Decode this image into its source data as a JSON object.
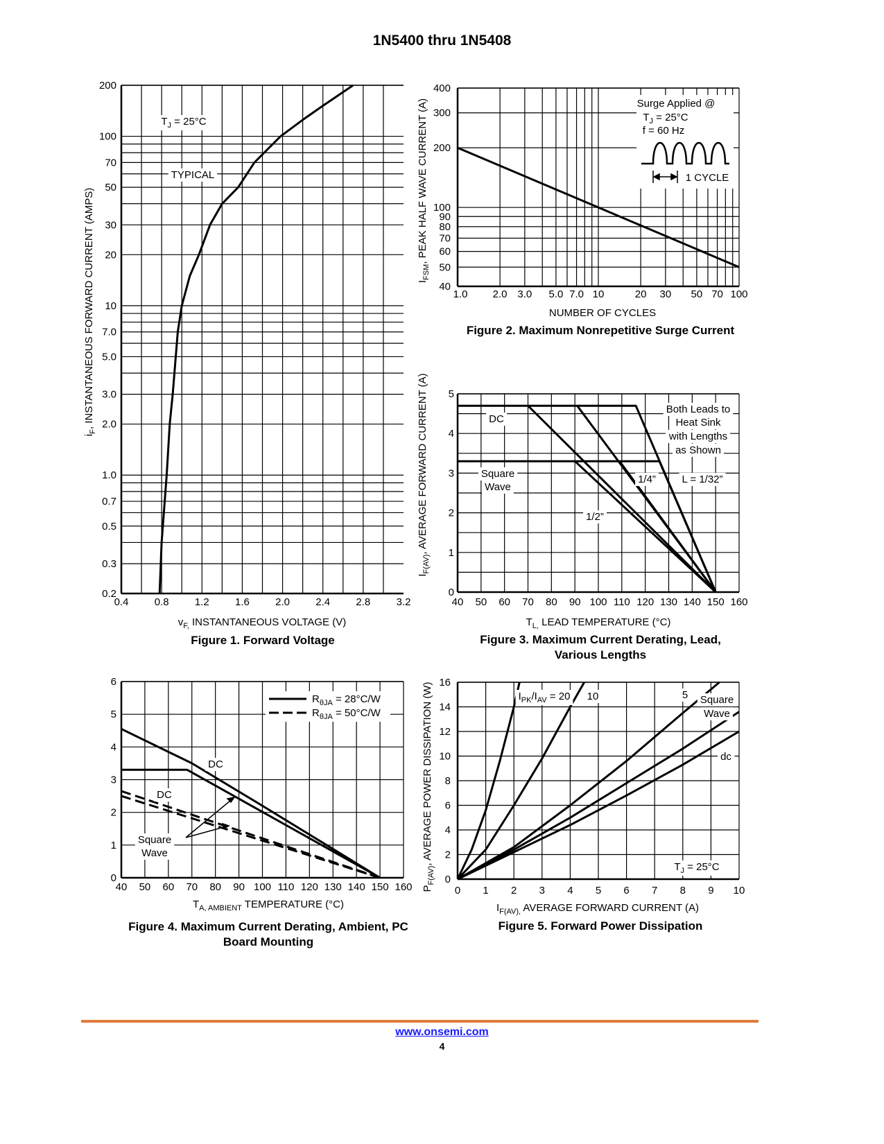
{
  "header": {
    "title": "1N5400 thru 1N5408"
  },
  "footer": {
    "link": "www.onsemi.com",
    "page": "4",
    "rule_color": "#e07b39",
    "link_color": "#1a1aff"
  },
  "chart_data": [
    {
      "id": "fig1",
      "type": "line",
      "title": "Figure 1. Forward Voltage",
      "xscale": "linear",
      "yscale": "log",
      "xlim": [
        0.4,
        3.2
      ],
      "ylim": [
        0.2,
        200
      ],
      "xticks": [
        "0.4",
        "0.8",
        "1.2",
        "1.6",
        "2.0",
        "2.4",
        "2.8",
        "3.2"
      ],
      "yticks": [
        "0.2",
        "0.3",
        "0.5",
        "0.7",
        "1.0",
        "2.0",
        "3.0",
        "5.0",
        "7.0",
        "10",
        "20",
        "30",
        "50",
        "70",
        "100",
        "200"
      ],
      "xgrid": [
        0.6,
        0.8,
        1.0,
        1.2,
        1.4,
        1.6,
        1.8,
        2.0,
        2.2,
        2.4,
        2.6,
        2.8,
        3.0
      ],
      "grid": true,
      "xlabel": [
        [
          "v",
          ""
        ],
        [
          "F,",
          "sub"
        ],
        [
          " INSTANTANEOUS VOLTAGE (V)",
          ""
        ]
      ],
      "ylabel": [
        [
          "i",
          ""
        ],
        [
          "F",
          ",",
          "sub"
        ],
        [
          ", INSTANTANEOUS FORWARD CURRENT (AMPS)",
          ""
        ]
      ],
      "annotations": [
        [
          [
            "T",
            ""
          ],
          [
            "J",
            "sub"
          ],
          [
            " = 25°C",
            ""
          ]
        ],
        [
          [
            "TYPICAL",
            ""
          ]
        ]
      ],
      "series": [
        {
          "style": "solid",
          "points": [
            [
              0.78,
              0.2
            ],
            [
              0.8,
              0.4
            ],
            [
              0.85,
              1
            ],
            [
              0.88,
              2
            ],
            [
              0.91,
              3
            ],
            [
              0.94,
              5
            ],
            [
              0.96,
              7
            ],
            [
              1.0,
              10
            ],
            [
              1.08,
              15
            ],
            [
              1.17,
              20
            ],
            [
              1.28,
              30
            ],
            [
              1.4,
              40
            ],
            [
              1.56,
              50
            ],
            [
              1.72,
              70
            ],
            [
              1.98,
              100
            ],
            [
              2.2,
              125
            ],
            [
              2.39,
              150
            ],
            [
              2.7,
              200
            ]
          ]
        }
      ]
    },
    {
      "id": "fig2",
      "type": "line",
      "title": "Figure 2. Maximum Nonrepetitive Surge Current",
      "xscale": "log",
      "yscale": "log",
      "xlim": [
        1,
        100
      ],
      "ylim": [
        40,
        400
      ],
      "xticks": [
        "1.0",
        "2.0",
        "3.0",
        "5.0",
        "7.0",
        "10",
        "20",
        "30",
        "50",
        "70",
        "100"
      ],
      "yticks": [
        "40",
        "50",
        "60",
        "70",
        "80",
        "90",
        "100",
        "200",
        "300",
        "400"
      ],
      "grid": true,
      "xlabel": [
        [
          "NUMBER OF CYCLES",
          ""
        ]
      ],
      "ylabel": [
        [
          "I",
          ""
        ],
        [
          "FSM",
          "sub"
        ],
        [
          ", PEAK HALF WAVE CURRENT (A)",
          ""
        ]
      ],
      "annotations": [
        [
          [
            "Surge Applied @",
            ""
          ]
        ],
        [
          [
            "T",
            ""
          ],
          [
            "J",
            "sub"
          ],
          [
            " = 25°C",
            ""
          ]
        ],
        [
          [
            "f = 60 Hz",
            ""
          ]
        ],
        [
          [
            "1 CYCLE",
            ""
          ]
        ]
      ],
      "series": [
        {
          "style": "solid",
          "points": [
            [
              1,
              200
            ],
            [
              100,
              50
            ]
          ]
        }
      ]
    },
    {
      "id": "fig3",
      "type": "line",
      "title": "Figure 3. Maximum Current Derating, Lead, Various Lengths",
      "xscale": "linear",
      "yscale": "linear",
      "xlim": [
        40,
        160
      ],
      "ylim": [
        0,
        5
      ],
      "xticks": [
        "40",
        "50",
        "60",
        "70",
        "80",
        "90",
        "100",
        "110",
        "120",
        "130",
        "140",
        "150",
        "160"
      ],
      "yticks": [
        "0",
        "1",
        "2",
        "3",
        "4",
        "5"
      ],
      "xgrid": [
        50,
        60,
        70,
        80,
        90,
        100,
        110,
        120,
        130,
        140,
        150,
        160
      ],
      "ygrid": [
        0.5,
        1,
        1.5,
        2,
        2.5,
        3,
        3.5,
        4,
        4.5,
        5
      ],
      "grid": true,
      "xlabel": [
        [
          "T",
          ""
        ],
        [
          "L,",
          "sub"
        ],
        [
          " LEAD TEMPERATURE (°C)",
          ""
        ]
      ],
      "ylabel": [
        [
          "I",
          ""
        ],
        [
          "F(AV)",
          "sub"
        ],
        [
          ", AVERAGE FORWARD CURRENT (A)",
          ""
        ]
      ],
      "annotations": [
        [
          [
            "DC",
            ""
          ]
        ],
        [
          [
            "Square",
            ""
          ]
        ],
        [
          [
            "Wave",
            ""
          ]
        ],
        [
          [
            "1/2”",
            ""
          ]
        ],
        [
          [
            "1/4”",
            ""
          ]
        ],
        [
          [
            "L = 1/32”",
            ""
          ]
        ],
        [
          [
            "Both Leads to",
            ""
          ]
        ],
        [
          [
            "Heat Sink",
            ""
          ]
        ],
        [
          [
            "with Lengths",
            ""
          ]
        ],
        [
          [
            "as Shown",
            ""
          ]
        ]
      ],
      "series": [
        {
          "style": "solid",
          "points": [
            [
              40,
              4.7
            ],
            [
              116,
              4.7
            ],
            [
              150,
              0
            ]
          ]
        },
        {
          "style": "solid",
          "points": [
            [
              91,
              4.7
            ],
            [
              150,
              0
            ]
          ]
        },
        {
          "style": "solid",
          "points": [
            [
              70,
              4.7
            ],
            [
              150,
              0
            ]
          ]
        },
        {
          "style": "solid",
          "points": [
            [
              40,
              3.3
            ],
            [
              126,
              3.3
            ],
            [
              150,
              0
            ]
          ]
        },
        {
          "style": "solid",
          "points": [
            [
              109,
              3.3
            ],
            [
              150,
              0
            ]
          ]
        },
        {
          "style": "solid",
          "points": [
            [
              90,
              3.3
            ],
            [
              150,
              0
            ]
          ]
        }
      ]
    },
    {
      "id": "fig4",
      "type": "line",
      "title": "Figure 4. Maximum Current Derating, Ambient, PC Board Mounting",
      "xscale": "linear",
      "yscale": "linear",
      "xlim": [
        40,
        160
      ],
      "ylim": [
        0,
        6
      ],
      "xticks": [
        "40",
        "50",
        "60",
        "70",
        "80",
        "90",
        "100",
        "110",
        "120",
        "130",
        "140",
        "150",
        "160"
      ],
      "yticks": [
        "0",
        "1",
        "2",
        "3",
        "4",
        "5",
        "6"
      ],
      "xgrid": [
        50,
        60,
        70,
        80,
        90,
        100,
        110,
        120,
        130,
        140,
        150,
        160
      ],
      "ygrid": [
        1,
        2,
        3,
        4,
        5,
        6
      ],
      "grid": true,
      "xlabel": [
        [
          "T",
          ""
        ],
        [
          "A, AMBIENT",
          "sub"
        ],
        [
          " TEMPERATURE (°C)",
          ""
        ]
      ],
      "legend": [
        {
          "style": "solid",
          "label": [
            [
              "R",
              ""
            ],
            [
              "θJA",
              "sub"
            ],
            [
              " = 28°C/W",
              ""
            ]
          ]
        },
        {
          "style": "dashed",
          "label": [
            [
              "R",
              ""
            ],
            [
              "θJA",
              "sub"
            ],
            [
              " = 50°C/W",
              ""
            ]
          ]
        }
      ],
      "legend_position": "top-right",
      "annotations": [
        [
          [
            "DC",
            ""
          ]
        ],
        [
          [
            "DC",
            ""
          ]
        ],
        [
          [
            "Square",
            ""
          ]
        ],
        [
          [
            "Wave",
            ""
          ]
        ]
      ],
      "series": [
        {
          "style": "solid",
          "points": [
            [
              40,
              4.55
            ],
            [
              70,
              3.5
            ],
            [
              100,
              2.2
            ],
            [
              150,
              0
            ]
          ]
        },
        {
          "style": "solid",
          "points": [
            [
              40,
              3.3
            ],
            [
              68,
              3.3
            ],
            [
              150,
              0
            ]
          ]
        },
        {
          "style": "dashed",
          "points": [
            [
              40,
              2.65
            ],
            [
              150,
              0
            ]
          ]
        },
        {
          "style": "dashed",
          "points": [
            [
              40,
              2.5
            ],
            [
              150,
              0
            ]
          ]
        }
      ]
    },
    {
      "id": "fig5",
      "type": "line",
      "title": "Figure 5. Forward Power Dissipation",
      "xscale": "linear",
      "yscale": "linear",
      "xlim": [
        0,
        10
      ],
      "ylim": [
        0,
        16
      ],
      "xticks": [
        "0",
        "1",
        "2",
        "3",
        "4",
        "5",
        "6",
        "7",
        "8",
        "9",
        "10"
      ],
      "yticks": [
        "0",
        "2",
        "4",
        "6",
        "8",
        "10",
        "12",
        "14",
        "16"
      ],
      "xgrid": [
        1,
        2,
        3,
        4,
        5,
        6,
        7,
        8,
        9,
        10
      ],
      "ygrid": [
        2,
        4,
        6,
        8,
        10,
        12,
        14,
        16
      ],
      "grid": true,
      "xlabel": [
        [
          "I",
          ""
        ],
        [
          "F(AV),",
          "sub"
        ],
        [
          " AVERAGE FORWARD CURRENT (A)",
          ""
        ]
      ],
      "ylabel": [
        [
          "P",
          ""
        ],
        [
          "F(AV)",
          "sub"
        ],
        [
          ", AVERAGE POWER DISSIPATION (W)",
          ""
        ]
      ],
      "annotations": [
        [
          [
            "I",
            ""
          ],
          [
            "PK",
            "sub"
          ],
          [
            "/I",
            ""
          ],
          [
            "AV",
            "sub"
          ],
          [
            " = 20",
            ""
          ]
        ],
        [
          [
            "10",
            ""
          ]
        ],
        [
          [
            "5",
            ""
          ]
        ],
        [
          [
            "Square",
            ""
          ]
        ],
        [
          [
            "Wave",
            ""
          ]
        ],
        [
          [
            "dc",
            ""
          ]
        ],
        [
          [
            "T",
            ""
          ],
          [
            "J",
            "sub"
          ],
          [
            " = 25°C",
            ""
          ]
        ]
      ],
      "series": [
        {
          "style": "solid",
          "points": [
            [
              0,
              0
            ],
            [
              0.5,
              2.4
            ],
            [
              1,
              5.6
            ],
            [
              1.5,
              9.6
            ],
            [
              2,
              14
            ],
            [
              2.2,
              16
            ]
          ]
        },
        {
          "style": "solid",
          "points": [
            [
              0,
              0
            ],
            [
              1,
              2.4
            ],
            [
              2,
              6
            ],
            [
              3,
              9.8
            ],
            [
              4,
              14
            ],
            [
              4.5,
              16
            ]
          ]
        },
        {
          "style": "solid",
          "points": [
            [
              0,
              0
            ],
            [
              2,
              2.6
            ],
            [
              4,
              6
            ],
            [
              6,
              9.6
            ],
            [
              8,
              13.5
            ],
            [
              9.3,
              16
            ]
          ]
        },
        {
          "style": "solid",
          "points": [
            [
              0,
              0
            ],
            [
              2,
              2.4
            ],
            [
              4,
              5
            ],
            [
              6,
              7.8
            ],
            [
              8,
              10.6
            ],
            [
              10,
              13.6
            ]
          ]
        },
        {
          "style": "solid",
          "points": [
            [
              0,
              0
            ],
            [
              2,
              2.2
            ],
            [
              4,
              4.4
            ],
            [
              6,
              6.8
            ],
            [
              8,
              9.3
            ],
            [
              10,
              12
            ]
          ]
        }
      ]
    }
  ]
}
